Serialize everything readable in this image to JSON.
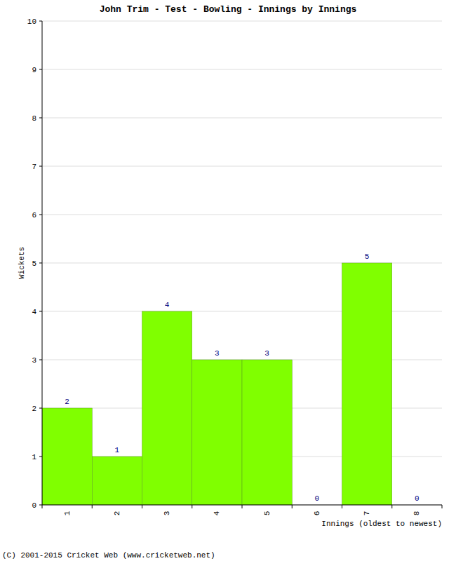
{
  "chart_data": {
    "type": "bar",
    "title": "John Trim - Test - Bowling - Innings by Innings",
    "x_label": "Innings (oldest to newest)",
    "y_label": "Wickets",
    "categories": [
      "1",
      "2",
      "3",
      "4",
      "5",
      "6",
      "7",
      "8"
    ],
    "values": [
      2,
      1,
      4,
      3,
      3,
      0,
      5,
      0
    ],
    "color": "#80ff00",
    "ylim": [
      0,
      10
    ],
    "yticks": [
      0,
      1,
      2,
      3,
      4,
      5,
      6,
      7,
      8,
      9,
      10
    ],
    "grid": true,
    "data_labels": true,
    "annotations": [
      "(C) 2001-2015 Cricket Web (www.cricketweb.net)"
    ]
  }
}
